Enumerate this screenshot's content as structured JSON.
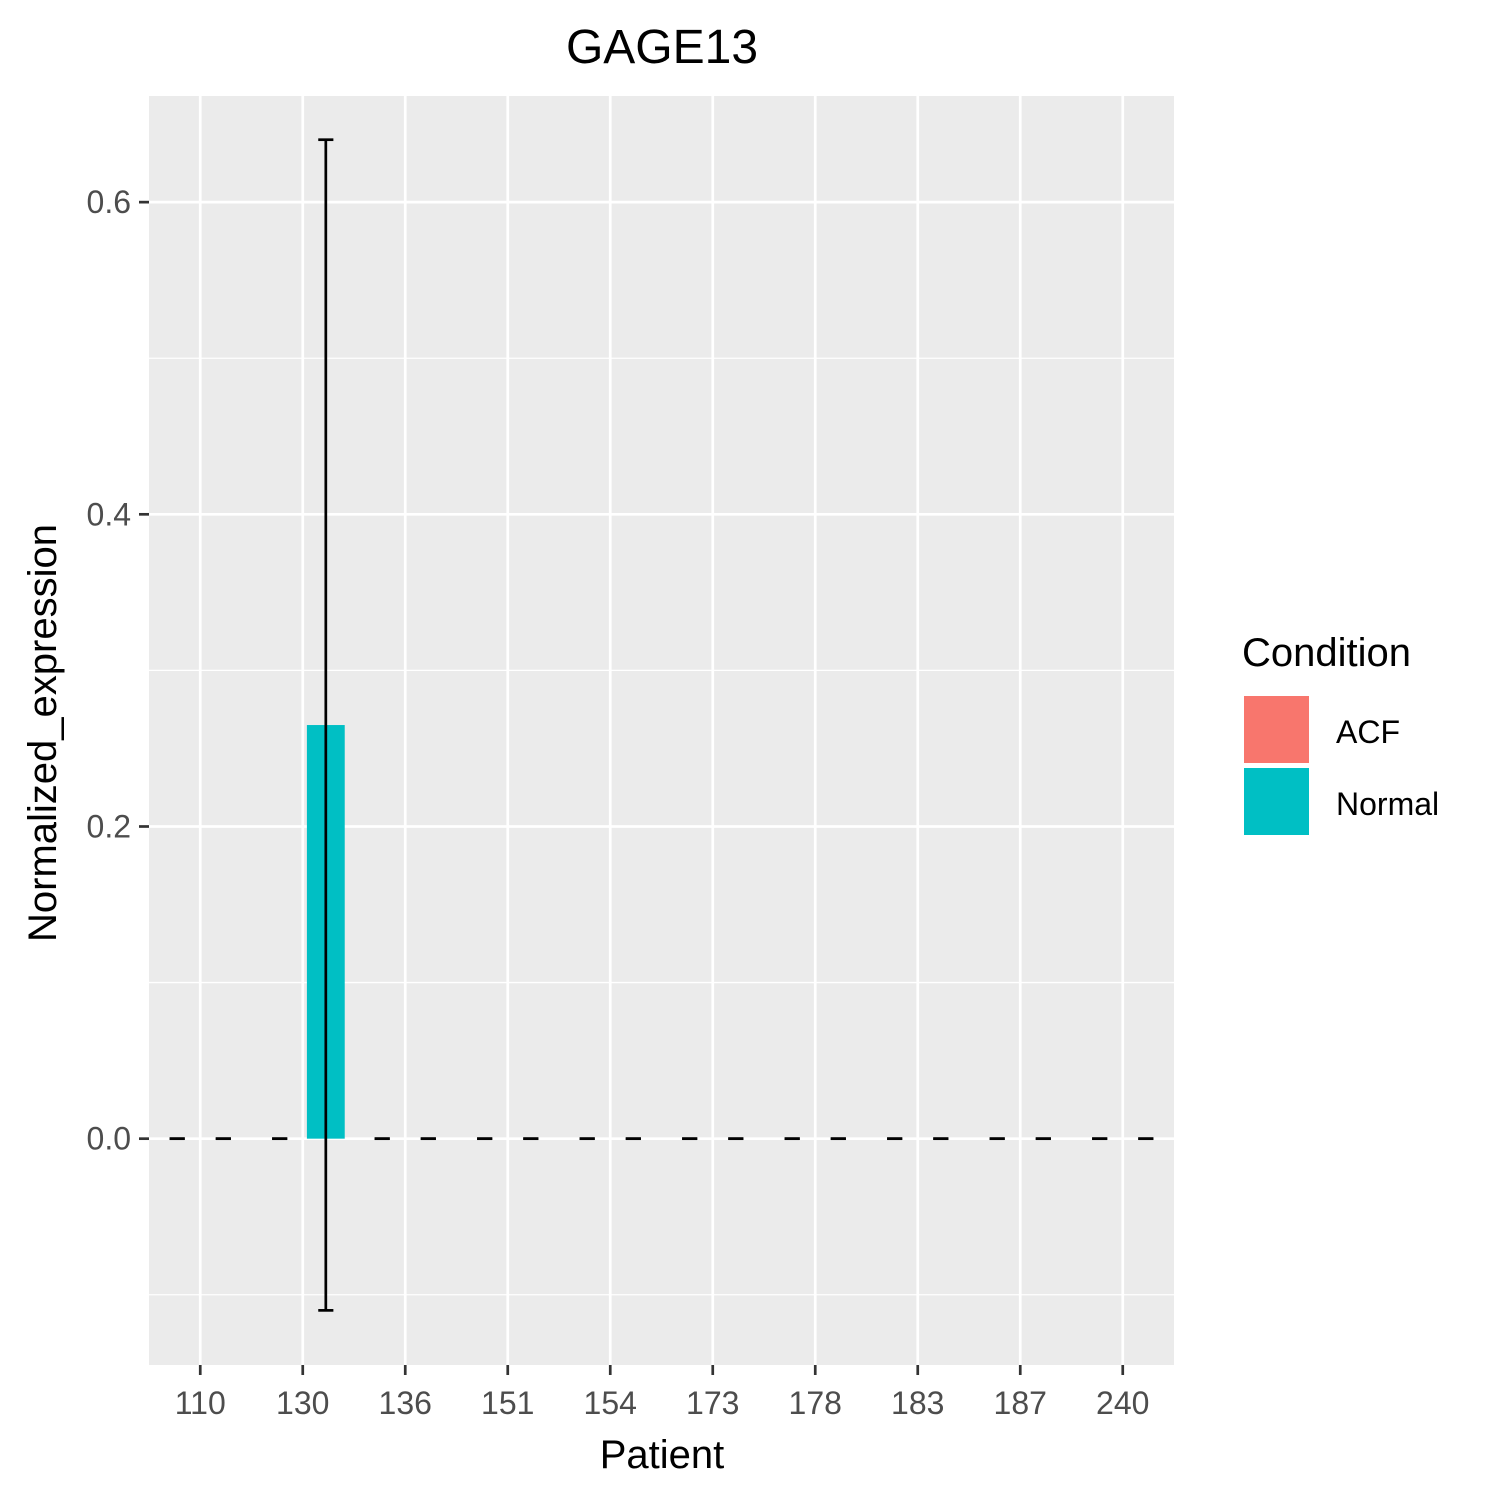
{
  "chart_data": {
    "type": "bar",
    "title": "GAGE13",
    "xlabel": "Patient",
    "ylabel": "Normalized_expression",
    "categories": [
      "110",
      "130",
      "136",
      "151",
      "154",
      "173",
      "178",
      "183",
      "187",
      "240"
    ],
    "ylim": [
      -0.145,
      0.668
    ],
    "yticks": [
      0.0,
      0.2,
      0.4,
      0.6
    ],
    "ytick_labels": [
      "0.0",
      "0.2",
      "0.4",
      "0.6"
    ],
    "grid": true,
    "legend": {
      "title": "Condition",
      "position": "right",
      "entries": [
        {
          "label": "ACF",
          "color": "#F8766D"
        },
        {
          "label": "Normal",
          "color": "#00BFC4"
        }
      ]
    },
    "series": [
      {
        "name": "ACF",
        "color": "#F8766D",
        "values": [
          0,
          0,
          0,
          0,
          0,
          0,
          0,
          0,
          0,
          0
        ],
        "error_low": [
          0,
          0,
          0,
          0,
          0,
          0,
          0,
          0,
          0,
          0
        ],
        "error_high": [
          0,
          0,
          0,
          0,
          0,
          0,
          0,
          0,
          0,
          0
        ]
      },
      {
        "name": "Normal",
        "color": "#00BFC4",
        "values": [
          0,
          0.265,
          0,
          0,
          0,
          0,
          0,
          0,
          0,
          0
        ],
        "error_low": [
          0,
          -0.11,
          0,
          0,
          0,
          0,
          0,
          0,
          0,
          0
        ],
        "error_high": [
          0,
          0.64,
          0,
          0,
          0,
          0,
          0,
          0,
          0,
          0
        ]
      }
    ]
  }
}
